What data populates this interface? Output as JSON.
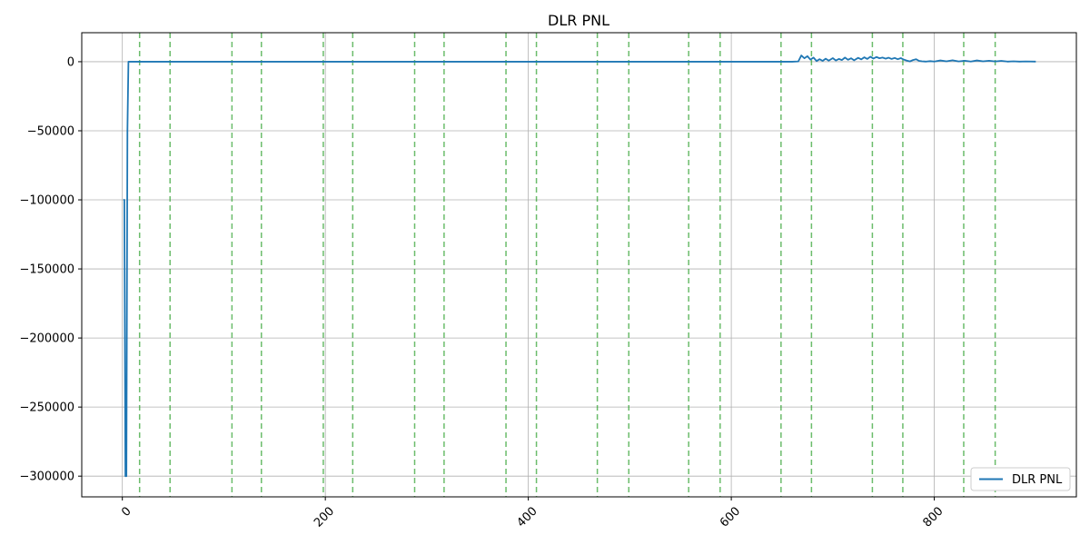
{
  "chart_data": {
    "type": "line",
    "title": "DLR PNL",
    "xlabel": "",
    "ylabel": "",
    "xlim": [
      -40,
      940
    ],
    "ylim": [
      -315000,
      21000
    ],
    "x_ticks": [
      0,
      200,
      400,
      600,
      800
    ],
    "y_ticks": [
      0,
      -50000,
      -100000,
      -150000,
      -200000,
      -250000,
      -300000
    ],
    "x_tick_labels": [
      "0",
      "200",
      "400",
      "600",
      "800"
    ],
    "y_tick_labels": [
      "0",
      "−50000",
      "−100000",
      "−150000",
      "−200000",
      "−250000",
      "−300000"
    ],
    "x_tick_rotation_deg": 45,
    "grid": true,
    "legend_position": "lower right",
    "series": [
      {
        "name": "DLR PNL",
        "color": "#1f77b4",
        "points": [
          [
            1,
            -100000
          ],
          [
            2,
            -100000
          ],
          [
            3,
            -300000
          ],
          [
            4,
            -300000
          ],
          [
            5,
            -50000
          ],
          [
            6,
            0
          ],
          [
            7,
            0
          ],
          [
            660,
            0
          ],
          [
            666,
            200
          ],
          [
            669,
            4500
          ],
          [
            672,
            2500
          ],
          [
            675,
            4000
          ],
          [
            678,
            1500
          ],
          [
            681,
            3000
          ],
          [
            684,
            500
          ],
          [
            687,
            1800
          ],
          [
            690,
            600
          ],
          [
            693,
            2200
          ],
          [
            696,
            800
          ],
          [
            700,
            2600
          ],
          [
            703,
            900
          ],
          [
            706,
            2000
          ],
          [
            709,
            1200
          ],
          [
            712,
            3000
          ],
          [
            715,
            1400
          ],
          [
            718,
            2500
          ],
          [
            721,
            1000
          ],
          [
            725,
            2800
          ],
          [
            728,
            1700
          ],
          [
            731,
            3200
          ],
          [
            734,
            2000
          ],
          [
            737,
            3600
          ],
          [
            740,
            2300
          ],
          [
            743,
            3400
          ],
          [
            746,
            2500
          ],
          [
            749,
            3000
          ],
          [
            752,
            2200
          ],
          [
            755,
            2900
          ],
          [
            758,
            2000
          ],
          [
            761,
            2700
          ],
          [
            764,
            1800
          ],
          [
            767,
            2600
          ],
          [
            770,
            1500
          ],
          [
            773,
            800
          ],
          [
            776,
            200
          ],
          [
            779,
            1200
          ],
          [
            782,
            1800
          ],
          [
            785,
            600
          ],
          [
            788,
            300
          ],
          [
            792,
            100
          ],
          [
            796,
            400
          ],
          [
            800,
            150
          ],
          [
            806,
            900
          ],
          [
            812,
            300
          ],
          [
            818,
            1000
          ],
          [
            824,
            200
          ],
          [
            830,
            700
          ],
          [
            836,
            100
          ],
          [
            842,
            900
          ],
          [
            848,
            300
          ],
          [
            854,
            700
          ],
          [
            860,
            200
          ],
          [
            866,
            600
          ],
          [
            872,
            100
          ],
          [
            878,
            300
          ],
          [
            884,
            100
          ],
          [
            890,
            200
          ],
          [
            900,
            100
          ]
        ]
      }
    ],
    "vlines": {
      "color": "#2ca02c",
      "style": "dashed",
      "x": [
        17,
        47,
        108,
        137,
        198,
        227,
        288,
        317,
        378,
        408,
        468,
        499,
        558,
        589,
        649,
        679,
        739,
        769,
        829,
        860
      ]
    }
  }
}
